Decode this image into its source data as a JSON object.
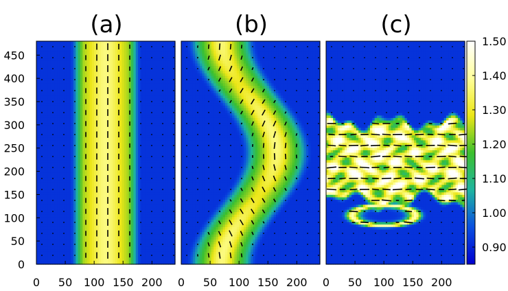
{
  "chart_data": [
    {
      "type": "heatmap",
      "title": "(a)",
      "xticks": [
        0,
        50,
        100,
        150,
        200
      ],
      "yticks": [
        0,
        50,
        100,
        150,
        200,
        250,
        300,
        350,
        400,
        450
      ],
      "xlim": [
        0,
        240
      ],
      "ylim": [
        0,
        480
      ],
      "grid": false,
      "description_values": {
        "band_center_x": 120,
        "band_inner_halfwidth": 36,
        "band_outer_halfwidth": 62,
        "peak_value": 1.37,
        "background_value": 0.92
      },
      "director_orientation": "vertical"
    },
    {
      "type": "heatmap",
      "title": "(b)",
      "xticks": [
        0,
        50,
        100,
        150,
        200
      ],
      "xlim": [
        0,
        240
      ],
      "ylim": [
        0,
        480
      ],
      "grid": false,
      "description_values": {
        "band_center_x_at_y0": 70,
        "band_center_x_at_y240": 165,
        "band_center_x_at_y480": 70,
        "band_halfwidth": 62,
        "peak_value": 1.37,
        "background_value": 0.92
      },
      "director_orientation": "along-band"
    },
    {
      "type": "heatmap",
      "title": "(c)",
      "xticks": [
        0,
        50,
        100,
        150,
        200
      ],
      "xlim": [
        0,
        240
      ],
      "ylim": [
        0,
        480
      ],
      "grid": false,
      "description_values": {
        "bulk_y_range": [
          140,
          300
        ],
        "peak_value": 1.5,
        "background_value": 0.92
      },
      "director_orientation": "horizontal"
    }
  ],
  "colorbar": {
    "ticks": [
      "1.50",
      "1.40",
      "1.30",
      "1.20",
      "1.10",
      "1.00",
      "0.90"
    ],
    "tick_values": [
      1.5,
      1.4,
      1.3,
      1.2,
      1.1,
      1.0,
      0.9
    ],
    "range": [
      0.85,
      1.5
    ],
    "colors": [
      "#0000d0",
      "#0a4fe0",
      "#1fb5a0",
      "#3cc02d",
      "#ece616",
      "#ffff9a",
      "#ffffff"
    ]
  }
}
